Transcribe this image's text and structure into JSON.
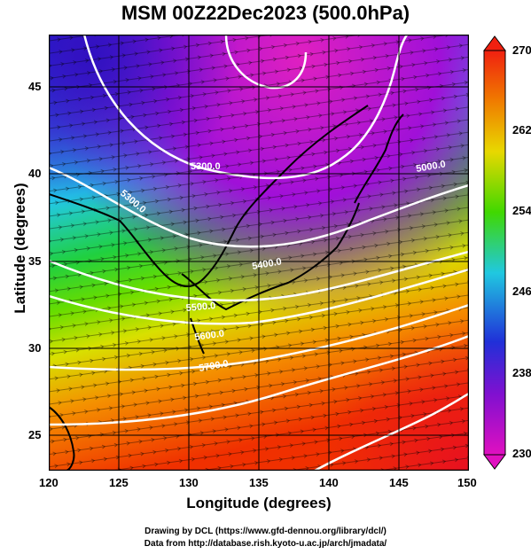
{
  "title": "MSM 00Z22Dec2023 (500.0hPa)",
  "xlabel": "Longitude (degrees)",
  "ylabel": "Latitude  (degrees)",
  "credit_line1": "Drawing by DCL (https://www.gfd-dennou.org/library/dcl/)",
  "credit_line2": "Data from http://database.rish.kyoto-u.ac.jp/arch/jmadata/",
  "x_ticks": [
    "120",
    "125",
    "130",
    "135",
    "140",
    "145",
    "150"
  ],
  "y_ticks": [
    "45",
    "40",
    "35",
    "30",
    "25"
  ],
  "colorbar": {
    "ticks": [
      "270",
      "262",
      "254",
      "246",
      "238",
      "230"
    ],
    "min": 230,
    "max": 270
  },
  "contour_labels": [
    "5300.0",
    "5300.0",
    "5000.0",
    "5400.0",
    "5500.0",
    "5600.0",
    "5700.0"
  ],
  "map": {
    "lon_range": [
      120,
      150
    ],
    "lat_range": [
      22.5,
      47.5
    ],
    "field": "temperature (K) shaded, geopotential height contours, wind streamlines"
  }
}
